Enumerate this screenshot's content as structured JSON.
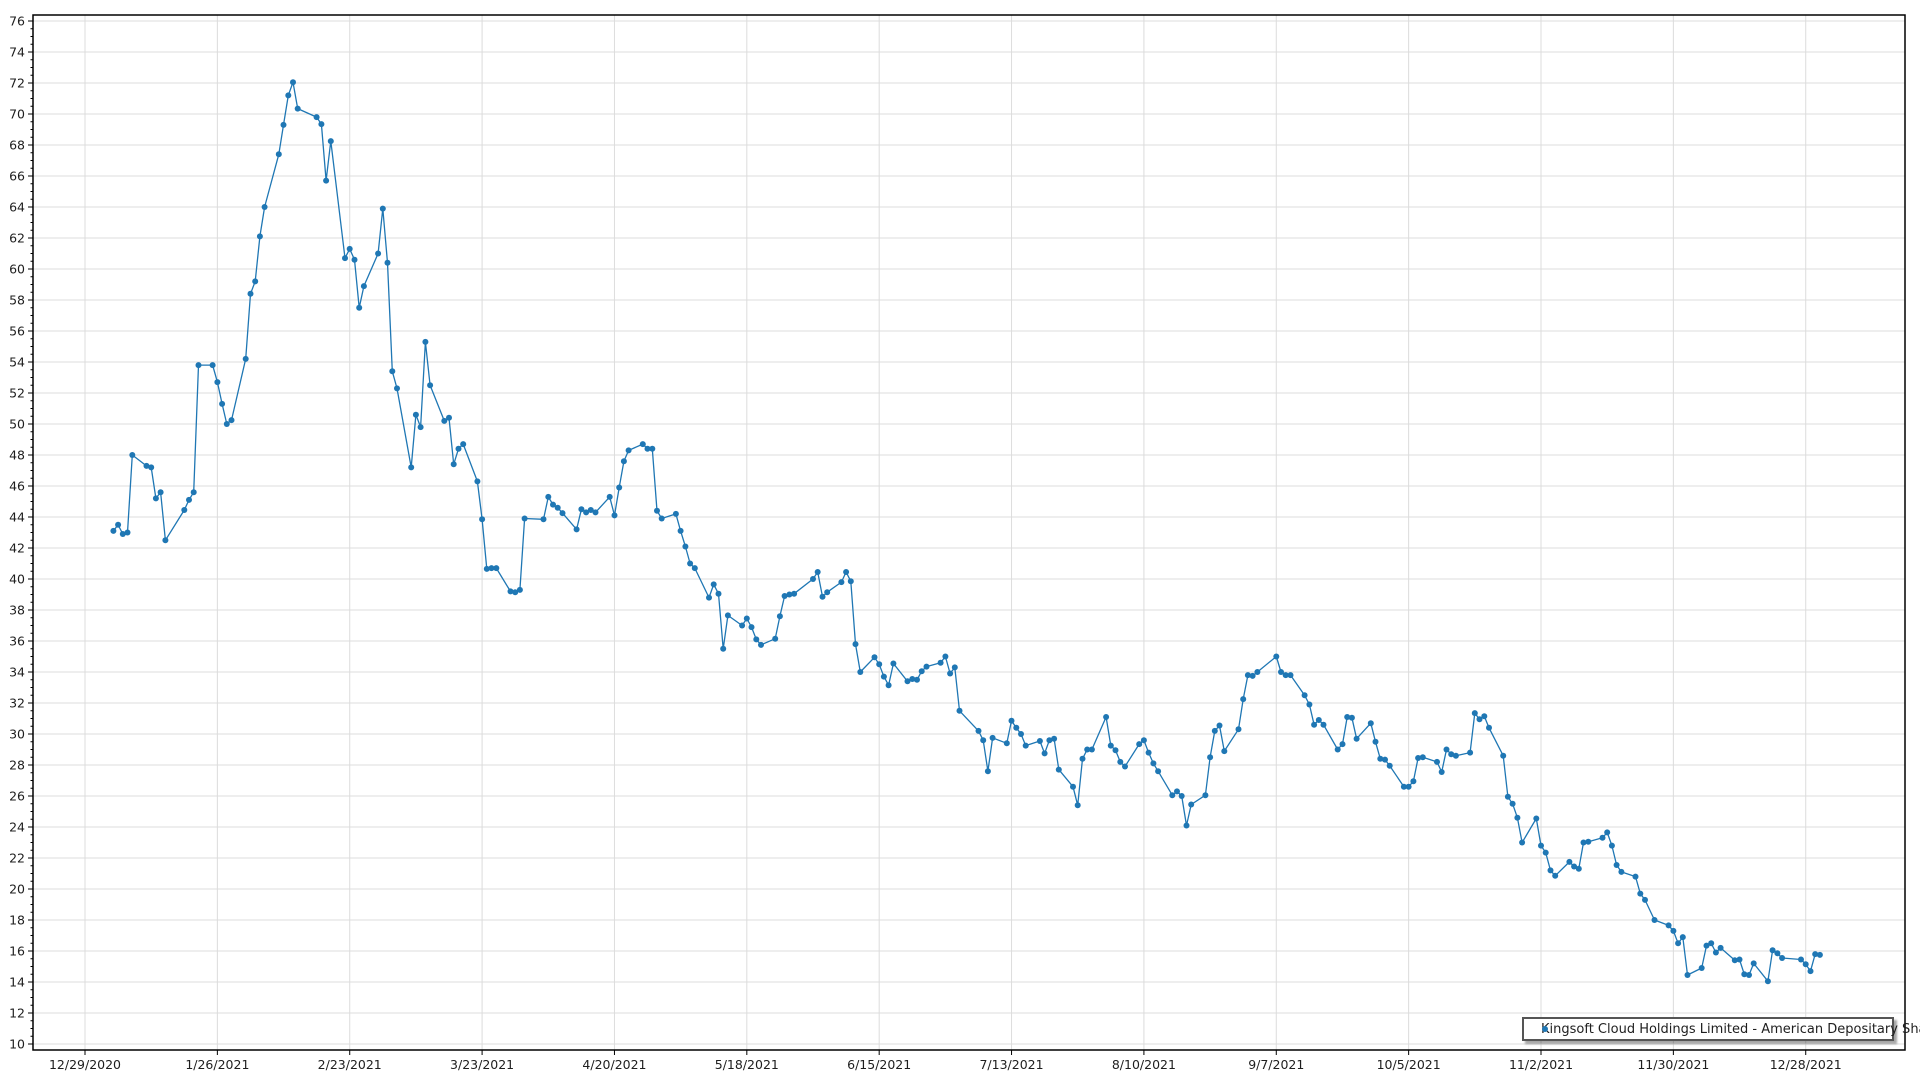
{
  "chart_data": {
    "type": "line",
    "title": "",
    "xlabel": "",
    "ylabel": "",
    "grid": true,
    "legend_placement": "bottom-right",
    "xlim": [
      "2020-12-18",
      "2022-01-18"
    ],
    "ylim": [
      10,
      76
    ],
    "x_ticks": [
      "12/29/2020",
      "1/26/2021",
      "2/23/2021",
      "3/23/2021",
      "4/20/2021",
      "5/18/2021",
      "6/15/2021",
      "7/13/2021",
      "8/10/2021",
      "9/7/2021",
      "10/5/2021",
      "11/2/2021",
      "11/30/2021",
      "12/28/2021"
    ],
    "y_ticks": [
      10,
      12,
      14,
      16,
      18,
      20,
      22,
      24,
      26,
      28,
      30,
      32,
      34,
      36,
      38,
      40,
      42,
      44,
      46,
      48,
      50,
      52,
      54,
      56,
      58,
      60,
      62,
      64,
      66,
      68,
      70,
      72,
      74,
      76
    ],
    "colors": {
      "series": "#1f77b4",
      "grid": "#dcdcdc",
      "axis": "#000000"
    },
    "series": [
      {
        "name": "Kingsoft Cloud Holdings Limited - American Depositary Shares",
        "marker": "circle",
        "points": [
          [
            "2021-01-04",
            43.1
          ],
          [
            "2021-01-05",
            43.5
          ],
          [
            "2021-01-06",
            42.9
          ],
          [
            "2021-01-07",
            43.0
          ],
          [
            "2021-01-08",
            48.0
          ],
          [
            "2021-01-11",
            47.3
          ],
          [
            "2021-01-12",
            47.2
          ],
          [
            "2021-01-13",
            45.2
          ],
          [
            "2021-01-14",
            45.6
          ],
          [
            "2021-01-15",
            42.5
          ],
          [
            "2021-01-19",
            44.45
          ],
          [
            "2021-01-20",
            45.1
          ],
          [
            "2021-01-21",
            45.6
          ],
          [
            "2021-01-22",
            53.8
          ],
          [
            "2021-01-25",
            53.8
          ],
          [
            "2021-01-26",
            52.7
          ],
          [
            "2021-01-27",
            51.3
          ],
          [
            "2021-01-28",
            50.0
          ],
          [
            "2021-01-29",
            50.25
          ],
          [
            "2021-02-01",
            54.2
          ],
          [
            "2021-02-02",
            58.4
          ],
          [
            "2021-02-03",
            59.2
          ],
          [
            "2021-02-04",
            62.1
          ],
          [
            "2021-02-05",
            64.0
          ],
          [
            "2021-02-08",
            67.4
          ],
          [
            "2021-02-09",
            69.3
          ],
          [
            "2021-02-10",
            71.2
          ],
          [
            "2021-02-11",
            72.05
          ],
          [
            "2021-02-12",
            70.35
          ],
          [
            "2021-02-16",
            69.8
          ],
          [
            "2021-02-17",
            69.35
          ],
          [
            "2021-02-18",
            65.7
          ],
          [
            "2021-02-19",
            68.25
          ],
          [
            "2021-02-22",
            60.7
          ],
          [
            "2021-02-23",
            61.3
          ],
          [
            "2021-02-24",
            60.6
          ],
          [
            "2021-02-25",
            57.5
          ],
          [
            "2021-02-26",
            58.9
          ],
          [
            "2021-03-01",
            61.0
          ],
          [
            "2021-03-02",
            63.9
          ],
          [
            "2021-03-03",
            60.4
          ],
          [
            "2021-03-04",
            53.4
          ],
          [
            "2021-03-05",
            52.3
          ],
          [
            "2021-03-08",
            47.2
          ],
          [
            "2021-03-09",
            50.6
          ],
          [
            "2021-03-10",
            49.8
          ],
          [
            "2021-03-11",
            55.3
          ],
          [
            "2021-03-12",
            52.5
          ],
          [
            "2021-03-15",
            50.2
          ],
          [
            "2021-03-16",
            50.4
          ],
          [
            "2021-03-17",
            47.4
          ],
          [
            "2021-03-18",
            48.4
          ],
          [
            "2021-03-19",
            48.7
          ],
          [
            "2021-03-22",
            46.3
          ],
          [
            "2021-03-23",
            43.85
          ],
          [
            "2021-03-24",
            40.65
          ],
          [
            "2021-03-25",
            40.7
          ],
          [
            "2021-03-26",
            40.7
          ],
          [
            "2021-03-29",
            39.2
          ],
          [
            "2021-03-30",
            39.15
          ],
          [
            "2021-03-31",
            39.3
          ],
          [
            "2021-04-01",
            43.9
          ],
          [
            "2021-04-05",
            43.85
          ],
          [
            "2021-04-06",
            45.3
          ],
          [
            "2021-04-07",
            44.8
          ],
          [
            "2021-04-08",
            44.6
          ],
          [
            "2021-04-09",
            44.25
          ],
          [
            "2021-04-12",
            43.2
          ],
          [
            "2021-04-13",
            44.5
          ],
          [
            "2021-04-14",
            44.3
          ],
          [
            "2021-04-15",
            44.45
          ],
          [
            "2021-04-16",
            44.3
          ],
          [
            "2021-04-19",
            45.3
          ],
          [
            "2021-04-20",
            44.1
          ],
          [
            "2021-04-21",
            45.9
          ],
          [
            "2021-04-22",
            47.6
          ],
          [
            "2021-04-23",
            48.3
          ],
          [
            "2021-04-26",
            48.7
          ],
          [
            "2021-04-27",
            48.4
          ],
          [
            "2021-04-28",
            48.4
          ],
          [
            "2021-04-29",
            44.4
          ],
          [
            "2021-04-30",
            43.9
          ],
          [
            "2021-05-03",
            44.2
          ],
          [
            "2021-05-04",
            43.1
          ],
          [
            "2021-05-05",
            42.1
          ],
          [
            "2021-05-06",
            41.0
          ],
          [
            "2021-05-07",
            40.7
          ],
          [
            "2021-05-10",
            38.8
          ],
          [
            "2021-05-11",
            39.65
          ],
          [
            "2021-05-12",
            39.05
          ],
          [
            "2021-05-13",
            35.5
          ],
          [
            "2021-05-14",
            37.65
          ],
          [
            "2021-05-17",
            37.0
          ],
          [
            "2021-05-18",
            37.45
          ],
          [
            "2021-05-19",
            36.9
          ],
          [
            "2021-05-20",
            36.1
          ],
          [
            "2021-05-21",
            35.75
          ],
          [
            "2021-05-24",
            36.15
          ],
          [
            "2021-05-25",
            37.6
          ],
          [
            "2021-05-26",
            38.9
          ],
          [
            "2021-05-27",
            39.0
          ],
          [
            "2021-05-28",
            39.05
          ],
          [
            "2021-06-01",
            40.0
          ],
          [
            "2021-06-02",
            40.45
          ],
          [
            "2021-06-03",
            38.85
          ],
          [
            "2021-06-04",
            39.15
          ],
          [
            "2021-06-07",
            39.8
          ],
          [
            "2021-06-08",
            40.45
          ],
          [
            "2021-06-09",
            39.85
          ],
          [
            "2021-06-10",
            35.8
          ],
          [
            "2021-06-11",
            34.0
          ],
          [
            "2021-06-14",
            34.95
          ],
          [
            "2021-06-15",
            34.5
          ],
          [
            "2021-06-16",
            33.7
          ],
          [
            "2021-06-17",
            33.15
          ],
          [
            "2021-06-18",
            34.55
          ],
          [
            "2021-06-21",
            33.4
          ],
          [
            "2021-06-22",
            33.55
          ],
          [
            "2021-06-23",
            33.5
          ],
          [
            "2021-06-24",
            34.05
          ],
          [
            "2021-06-25",
            34.35
          ],
          [
            "2021-06-28",
            34.6
          ],
          [
            "2021-06-29",
            35.0
          ],
          [
            "2021-06-30",
            33.9
          ],
          [
            "2021-07-01",
            34.3
          ],
          [
            "2021-07-02",
            31.5
          ],
          [
            "2021-07-06",
            30.2
          ],
          [
            "2021-07-07",
            29.6
          ],
          [
            "2021-07-08",
            27.6
          ],
          [
            "2021-07-09",
            29.75
          ],
          [
            "2021-07-12",
            29.4
          ],
          [
            "2021-07-13",
            30.85
          ],
          [
            "2021-07-14",
            30.4
          ],
          [
            "2021-07-15",
            30.0
          ],
          [
            "2021-07-16",
            29.25
          ],
          [
            "2021-07-19",
            29.55
          ],
          [
            "2021-07-20",
            28.75
          ],
          [
            "2021-07-21",
            29.6
          ],
          [
            "2021-07-22",
            29.7
          ],
          [
            "2021-07-23",
            27.7
          ],
          [
            "2021-07-26",
            26.6
          ],
          [
            "2021-07-27",
            25.4
          ],
          [
            "2021-07-28",
            28.4
          ],
          [
            "2021-07-29",
            29.0
          ],
          [
            "2021-07-30",
            29.0
          ],
          [
            "2021-08-02",
            31.1
          ],
          [
            "2021-08-03",
            29.25
          ],
          [
            "2021-08-04",
            28.95
          ],
          [
            "2021-08-05",
            28.2
          ],
          [
            "2021-08-06",
            27.9
          ],
          [
            "2021-08-09",
            29.35
          ],
          [
            "2021-08-10",
            29.6
          ],
          [
            "2021-08-11",
            28.8
          ],
          [
            "2021-08-12",
            28.1
          ],
          [
            "2021-08-13",
            27.6
          ],
          [
            "2021-08-16",
            26.05
          ],
          [
            "2021-08-17",
            26.3
          ],
          [
            "2021-08-18",
            26.0
          ],
          [
            "2021-08-19",
            24.1
          ],
          [
            "2021-08-20",
            25.45
          ],
          [
            "2021-08-23",
            26.05
          ],
          [
            "2021-08-24",
            28.5
          ],
          [
            "2021-08-25",
            30.2
          ],
          [
            "2021-08-26",
            30.55
          ],
          [
            "2021-08-27",
            28.9
          ],
          [
            "2021-08-30",
            30.3
          ],
          [
            "2021-08-31",
            32.25
          ],
          [
            "2021-09-01",
            33.8
          ],
          [
            "2021-09-02",
            33.75
          ],
          [
            "2021-09-03",
            34.0
          ],
          [
            "2021-09-07",
            35.0
          ],
          [
            "2021-09-08",
            34.0
          ],
          [
            "2021-09-09",
            33.8
          ],
          [
            "2021-09-10",
            33.8
          ],
          [
            "2021-09-13",
            32.5
          ],
          [
            "2021-09-14",
            31.9
          ],
          [
            "2021-09-15",
            30.6
          ],
          [
            "2021-09-16",
            30.9
          ],
          [
            "2021-09-17",
            30.6
          ],
          [
            "2021-09-20",
            29.0
          ],
          [
            "2021-09-21",
            29.35
          ],
          [
            "2021-09-22",
            31.1
          ],
          [
            "2021-09-23",
            31.05
          ],
          [
            "2021-09-24",
            29.7
          ],
          [
            "2021-09-27",
            30.7
          ],
          [
            "2021-09-28",
            29.5
          ],
          [
            "2021-09-29",
            28.4
          ],
          [
            "2021-09-30",
            28.35
          ],
          [
            "2021-10-01",
            27.95
          ],
          [
            "2021-10-04",
            26.6
          ],
          [
            "2021-10-05",
            26.6
          ],
          [
            "2021-10-06",
            26.95
          ],
          [
            "2021-10-07",
            28.45
          ],
          [
            "2021-10-08",
            28.5
          ],
          [
            "2021-10-11",
            28.2
          ],
          [
            "2021-10-12",
            27.55
          ],
          [
            "2021-10-13",
            29.0
          ],
          [
            "2021-10-14",
            28.7
          ],
          [
            "2021-10-15",
            28.6
          ],
          [
            "2021-10-18",
            28.8
          ],
          [
            "2021-10-19",
            31.35
          ],
          [
            "2021-10-20",
            30.95
          ],
          [
            "2021-10-21",
            31.15
          ],
          [
            "2021-10-22",
            30.4
          ],
          [
            "2021-10-25",
            28.6
          ],
          [
            "2021-10-26",
            25.95
          ],
          [
            "2021-10-27",
            25.5
          ],
          [
            "2021-10-28",
            24.6
          ],
          [
            "2021-10-29",
            23.0
          ],
          [
            "2021-11-01",
            24.55
          ],
          [
            "2021-11-02",
            22.8
          ],
          [
            "2021-11-03",
            22.35
          ],
          [
            "2021-11-04",
            21.2
          ],
          [
            "2021-11-05",
            20.85
          ],
          [
            "2021-11-08",
            21.75
          ],
          [
            "2021-11-09",
            21.45
          ],
          [
            "2021-11-10",
            21.3
          ],
          [
            "2021-11-11",
            23.0
          ],
          [
            "2021-11-12",
            23.05
          ],
          [
            "2021-11-15",
            23.3
          ],
          [
            "2021-11-16",
            23.65
          ],
          [
            "2021-11-17",
            22.8
          ],
          [
            "2021-11-18",
            21.55
          ],
          [
            "2021-11-19",
            21.1
          ],
          [
            "2021-11-22",
            20.8
          ],
          [
            "2021-11-23",
            19.7
          ],
          [
            "2021-11-24",
            19.3
          ],
          [
            "2021-11-26",
            18.0
          ],
          [
            "2021-11-29",
            17.65
          ],
          [
            "2021-11-30",
            17.3
          ],
          [
            "2021-12-01",
            16.5
          ],
          [
            "2021-12-02",
            16.9
          ],
          [
            "2021-12-03",
            14.45
          ],
          [
            "2021-12-06",
            14.9
          ],
          [
            "2021-12-07",
            16.35
          ],
          [
            "2021-12-08",
            16.5
          ],
          [
            "2021-12-09",
            15.9
          ],
          [
            "2021-12-10",
            16.2
          ],
          [
            "2021-12-13",
            15.4
          ],
          [
            "2021-12-14",
            15.45
          ],
          [
            "2021-12-15",
            14.5
          ],
          [
            "2021-12-16",
            14.45
          ],
          [
            "2021-12-17",
            15.2
          ],
          [
            "2021-12-20",
            14.05
          ],
          [
            "2021-12-21",
            16.05
          ],
          [
            "2021-12-22",
            15.85
          ],
          [
            "2021-12-23",
            15.55
          ],
          [
            "2021-12-27",
            15.45
          ],
          [
            "2021-12-28",
            15.15
          ],
          [
            "2021-12-29",
            14.7
          ],
          [
            "2021-12-30",
            15.8
          ],
          [
            "2021-12-31",
            15.75
          ]
        ]
      }
    ]
  },
  "legend": {
    "label": "Kingsoft Cloud Holdings Limited - American Depositary Shares"
  }
}
